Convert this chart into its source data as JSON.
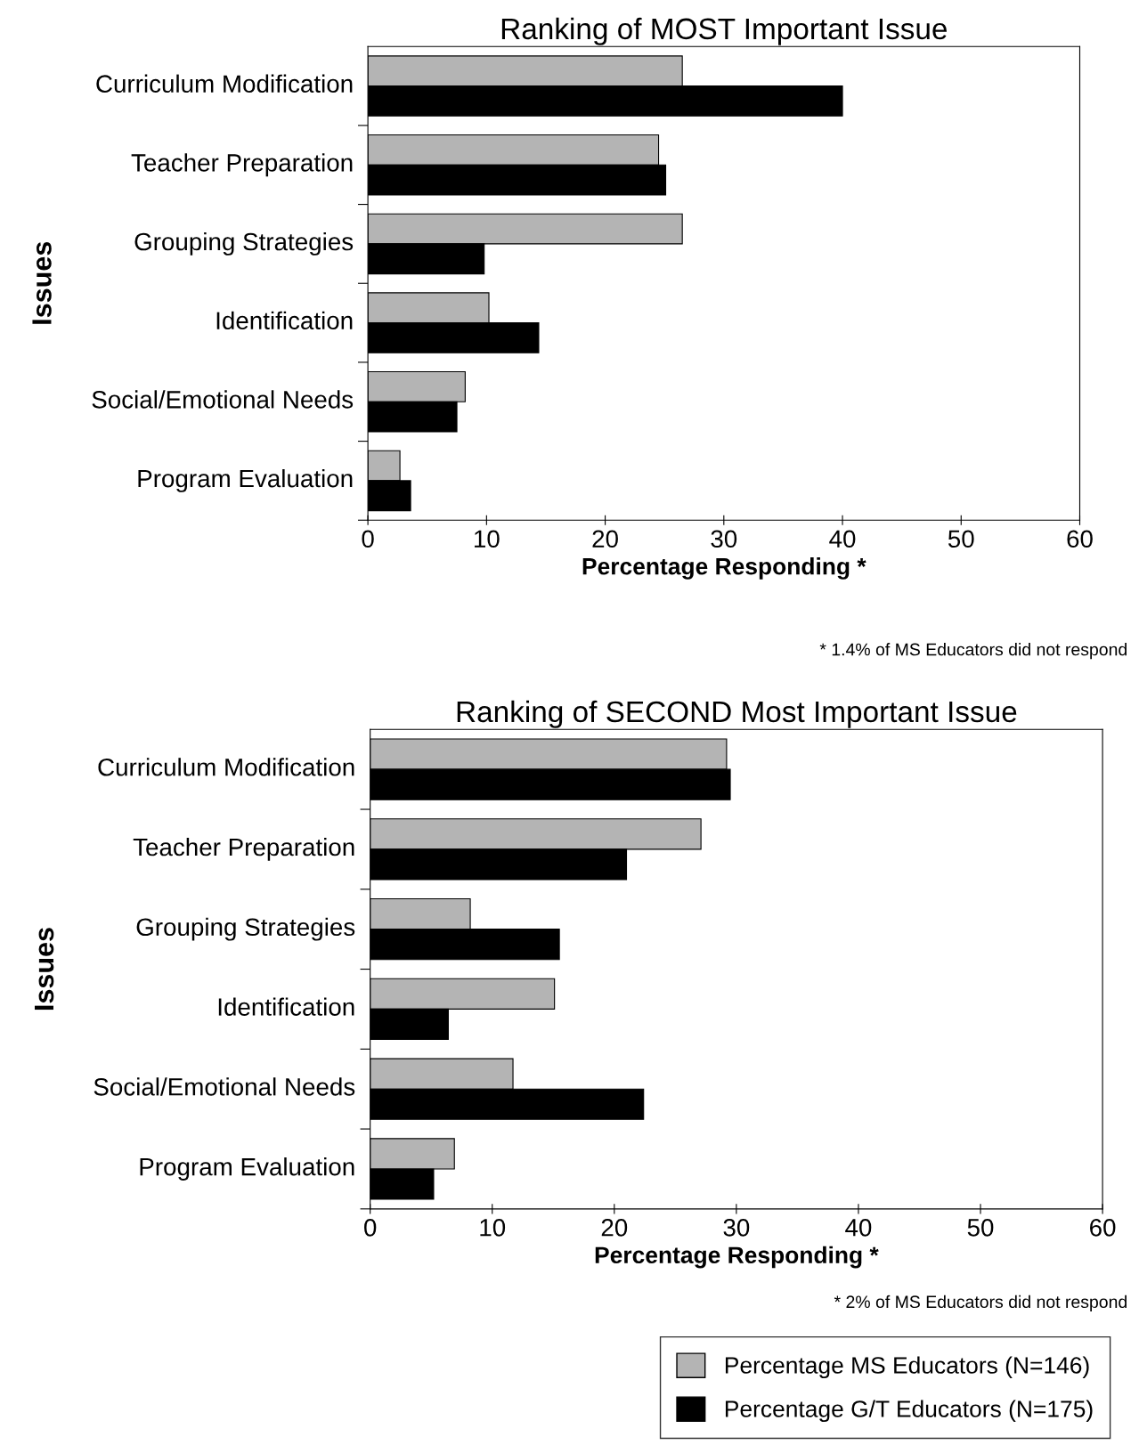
{
  "chart_data": [
    {
      "type": "bar",
      "orientation": "horizontal",
      "title": "Ranking of MOST Important Issue",
      "xlabel": "Percentage Responding *",
      "ylabel": "Issues",
      "categories": [
        "Curriculum Modification",
        "Teacher Preparation",
        "Grouping Strategies",
        "Identification",
        "Social/Emotional Needs",
        "Program Evaluation"
      ],
      "series": [
        {
          "color": "#b4b4b4",
          "values": [
            26.5,
            24.5,
            26.5,
            10.2,
            8.2,
            2.7
          ]
        },
        {
          "color": "#000000",
          "values": [
            40,
            25.1,
            9.8,
            14.4,
            7.5,
            3.6
          ]
        }
      ],
      "xlim": [
        0,
        60
      ],
      "xticks": [
        0,
        10,
        20,
        30,
        40,
        50,
        60
      ],
      "grid": false,
      "annotations": [
        "* 1.4% of MS Educators did not respond"
      ]
    },
    {
      "type": "bar",
      "orientation": "horizontal",
      "title": "Ranking of SECOND Most Important Issue",
      "xlabel": "Percentage Responding *",
      "ylabel": "Issues",
      "categories": [
        "Curriculum Modification",
        "Teacher Preparation",
        "Grouping Strategies",
        "Identification",
        "Social/Emotional Needs",
        "Program Evaluation"
      ],
      "series": [
        {
          "name": "Percentage MS Educators (N=146)",
          "color": "#b4b4b4",
          "values": [
            29.2,
            27.1,
            8.2,
            15.1,
            11.7,
            6.9
          ]
        },
        {
          "name": "Percentage G/T Educators (N=175)",
          "color": "#000000",
          "values": [
            29.5,
            21.0,
            15.5,
            6.4,
            22.4,
            5.2
          ]
        }
      ],
      "xlim": [
        0,
        60
      ],
      "xticks": [
        0,
        10,
        20,
        30,
        40,
        50,
        60
      ],
      "grid": false,
      "legend": "bottom right",
      "annotations": [
        "* 2% of MS Educators did not respond"
      ]
    }
  ]
}
